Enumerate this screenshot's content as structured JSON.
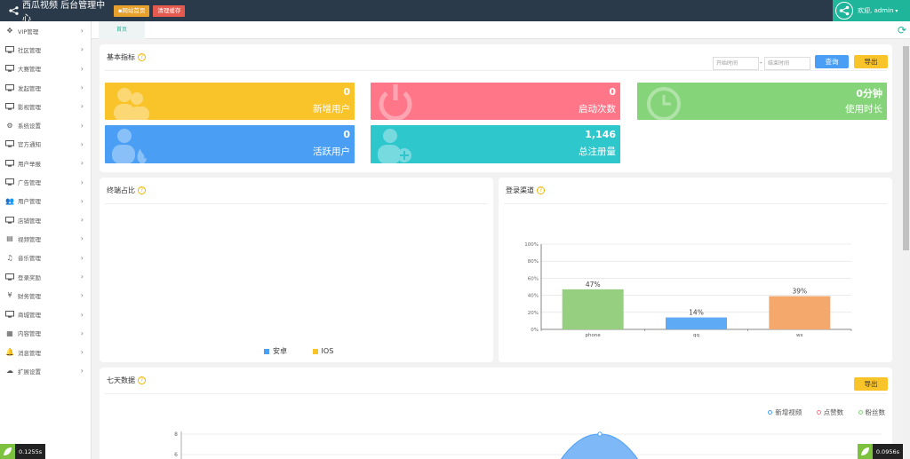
{
  "header": {
    "title": "西瓜视频 后台管理中心",
    "home_btn": "网站首页",
    "clear_btn": "清理缓存",
    "welcome": "欢迎, admin",
    "colors": {
      "topbar": "#2b3a4a",
      "accent": "#1fb59a"
    }
  },
  "sidebar": {
    "items": [
      {
        "label": "VIP管理",
        "icon": "move-icon"
      },
      {
        "label": "社区管理",
        "icon": "monitor-icon"
      },
      {
        "label": "大赛管理",
        "icon": "monitor-icon"
      },
      {
        "label": "发起管理",
        "icon": "monitor-icon"
      },
      {
        "label": "影视管理",
        "icon": "monitor-icon"
      },
      {
        "label": "系统设置",
        "icon": "gears-icon"
      },
      {
        "label": "官方通知",
        "icon": "monitor-icon"
      },
      {
        "label": "用户举报",
        "icon": "monitor-icon"
      },
      {
        "label": "广告管理",
        "icon": "monitor-icon"
      },
      {
        "label": "用户管理",
        "icon": "users-icon"
      },
      {
        "label": "店铺管理",
        "icon": "monitor-icon"
      },
      {
        "label": "视频管理",
        "icon": "file-icon"
      },
      {
        "label": "音乐管理",
        "icon": "music-icon"
      },
      {
        "label": "登录奖励",
        "icon": "monitor-icon"
      },
      {
        "label": "财务管理",
        "icon": "yen-icon"
      },
      {
        "label": "商城管理",
        "icon": "monitor-icon"
      },
      {
        "label": "内容管理",
        "icon": "grid-icon"
      },
      {
        "label": "消息管理",
        "icon": "bell-icon"
      },
      {
        "label": "扩展设置",
        "icon": "cloud-icon"
      }
    ]
  },
  "tabs": {
    "home": "首页"
  },
  "basic": {
    "title": "基本指标",
    "start_placeholder": "开始时间",
    "end_placeholder": "结束时间",
    "query": "查询",
    "export": "导出",
    "cards": {
      "new_users": {
        "value": "0",
        "label": "新增用户",
        "color": "#f9c32a"
      },
      "launches": {
        "value": "0",
        "label": "启动次数",
        "color": "#ff7689"
      },
      "usage": {
        "value": "0分钟",
        "label": "使用时长",
        "color": "#86d47a"
      },
      "active": {
        "value": "0",
        "label": "活跃用户",
        "color": "#4a9ff5"
      },
      "registered": {
        "value": "1,146",
        "label": "总注册量",
        "color": "#2ec7cc"
      }
    }
  },
  "terminal": {
    "title": "终端占比",
    "legend": [
      {
        "name": "安卓",
        "color": "#4a9ff5"
      },
      {
        "name": "IOS",
        "color": "#f9c32a"
      }
    ]
  },
  "channels": {
    "title": "登录渠道"
  },
  "chart_data": [
    {
      "type": "bar",
      "title": "登录渠道",
      "categories": [
        "phone",
        "qq",
        "wx"
      ],
      "values": [
        47,
        14,
        39
      ],
      "data_labels": [
        "47%",
        "14%",
        "39%"
      ],
      "colors": [
        "#95cf7f",
        "#5faaf5",
        "#f5a86b"
      ],
      "yticks": [
        "0%",
        "20%",
        "40%",
        "60%",
        "80%",
        "100%"
      ],
      "ylim": [
        0,
        100
      ],
      "grid": true
    },
    {
      "type": "line",
      "title": "七天数据",
      "legend": [
        "新增视频",
        "点赞数",
        "粉丝数"
      ],
      "legend_colors": [
        "#4a9ff5",
        "#ff7689",
        "#86d47a"
      ],
      "legend_position": "top-right",
      "yticks": [
        "6",
        "8"
      ]
    }
  ],
  "seven_days": {
    "title": "七天数据",
    "export": "导出",
    "legend": [
      "新增视频",
      "点赞数",
      "粉丝数"
    ]
  },
  "badges": {
    "left": "0.1255s",
    "right": "0.0956s"
  }
}
